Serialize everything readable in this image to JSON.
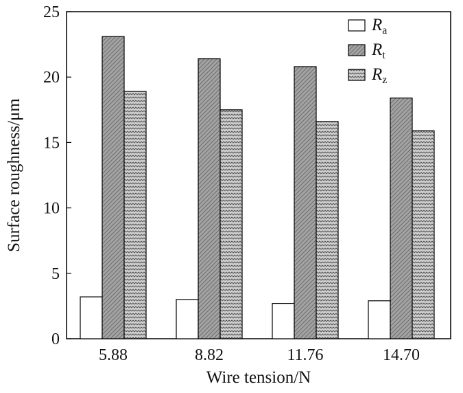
{
  "chart_data": {
    "type": "bar",
    "categories": [
      "5.88",
      "8.82",
      "11.76",
      "14.70"
    ],
    "series": [
      {
        "name": "Ra",
        "label_main": "R",
        "label_sub": "a",
        "values": [
          3.2,
          3.0,
          2.7,
          2.9
        ],
        "fill": "#ffffff"
      },
      {
        "name": "Rt",
        "label_main": "R",
        "label_sub": "t",
        "values": [
          23.1,
          21.4,
          20.8,
          18.4
        ],
        "fill": "#9b9b9b"
      },
      {
        "name": "Rz",
        "label_main": "R",
        "label_sub": "z",
        "values": [
          18.9,
          17.5,
          16.6,
          15.9
        ],
        "fill": "#c2c2c2"
      }
    ],
    "xlabel": "Wire tension/N",
    "ylabel": "Surface roughness/μm",
    "ylim": [
      0,
      25
    ],
    "yticks": [
      0,
      5,
      10,
      15,
      20,
      25
    ],
    "grid": false,
    "legend_position": "top-right"
  }
}
